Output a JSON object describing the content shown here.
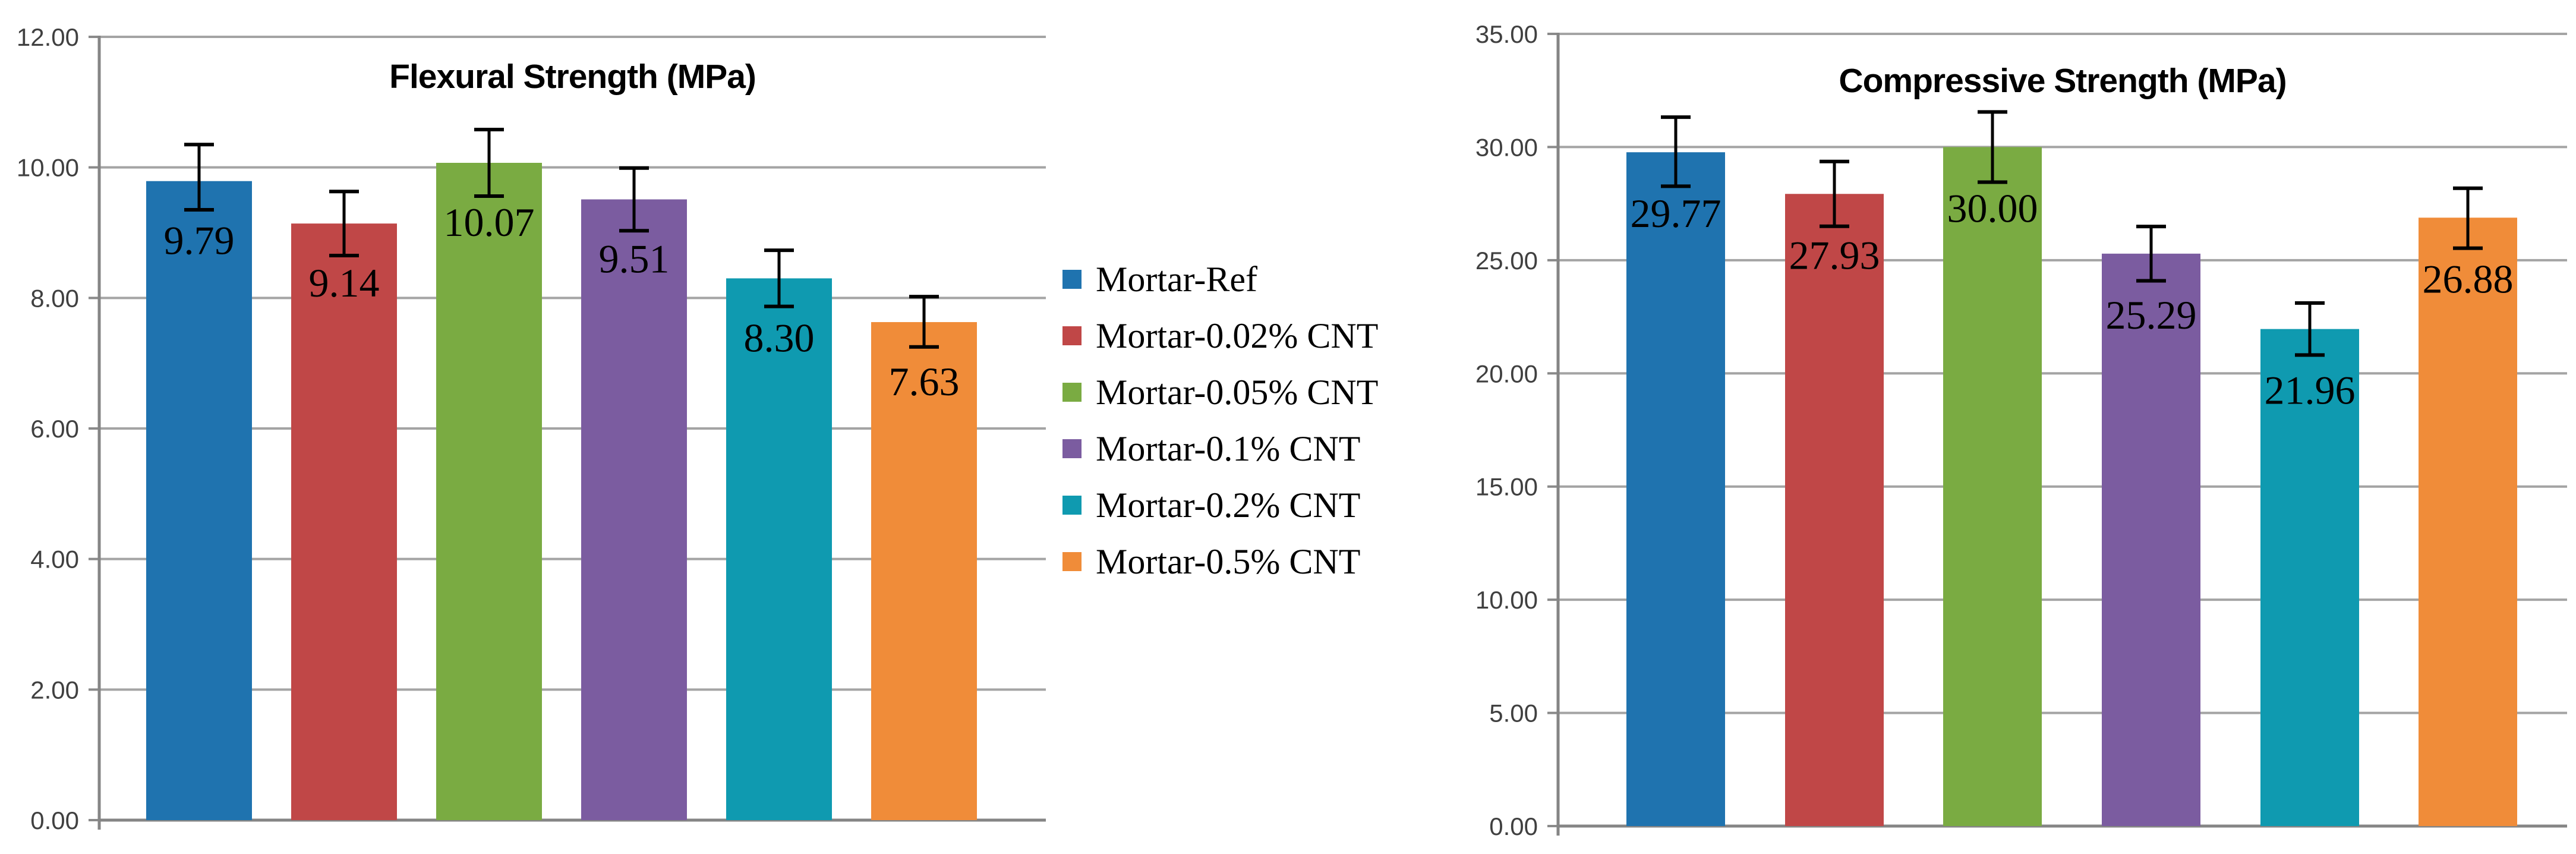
{
  "chart_data": [
    {
      "type": "bar",
      "title": "Flexural Strength (MPa)",
      "categories": [
        "Mortar-Ref",
        "Mortar-0.02% CNT",
        "Mortar-0.05% CNT",
        "Mortar-0.1% CNT",
        "Mortar-0.2% CNT",
        "Mortar-0.5% CNT"
      ],
      "values": [
        9.79,
        9.14,
        10.07,
        9.51,
        8.3,
        7.63
      ],
      "value_labels": [
        "9.79",
        "9.14",
        "10.07",
        "9.51",
        "8.30",
        "7.63"
      ],
      "errors": [
        {
          "plus": 0.56,
          "minus": 0.44
        },
        {
          "plus": 0.49,
          "minus": 0.49
        },
        {
          "plus": 0.51,
          "minus": 0.51
        },
        {
          "plus": 0.48,
          "minus": 0.48
        },
        {
          "plus": 0.43,
          "minus": 0.43
        },
        {
          "plus": 0.39,
          "minus": 0.38
        }
      ],
      "xlabel": "",
      "ylabel": "",
      "ylim": [
        0,
        12
      ],
      "ytick_step": 2,
      "ytick_labels": [
        "0.00",
        "2.00",
        "4.00",
        "6.00",
        "8.00",
        "10.00",
        "12.00"
      ],
      "grid": true,
      "error_bars": true,
      "legend_position": "right-of-chart-shared"
    },
    {
      "type": "bar",
      "title": "Compressive Strength (MPa)",
      "categories": [
        "Mortar-Ref",
        "Mortar-0.02% CNT",
        "Mortar-0.05% CNT",
        "Mortar-0.1% CNT",
        "Mortar-0.2% CNT",
        "Mortar-0.5% CNT"
      ],
      "values": [
        29.77,
        27.93,
        30.0,
        25.29,
        21.96,
        26.88
      ],
      "value_labels": [
        "29.77",
        "27.93",
        "30.00",
        "25.29",
        "21.96",
        "26.88"
      ],
      "errors": [
        {
          "plus": 1.55,
          "minus": 1.5
        },
        {
          "plus": 1.43,
          "minus": 1.43
        },
        {
          "plus": 1.55,
          "minus": 1.55
        },
        {
          "plus": 1.2,
          "minus": 1.2
        },
        {
          "plus": 1.15,
          "minus": 1.15
        },
        {
          "plus": 1.3,
          "minus": 1.35
        }
      ],
      "xlabel": "",
      "ylabel": "",
      "ylim": [
        0,
        35
      ],
      "ytick_step": 5,
      "ytick_labels": [
        "0.00",
        "5.00",
        "10.00",
        "15.00",
        "20.00",
        "25.00",
        "30.00",
        "35.00"
      ],
      "grid": true,
      "error_bars": true,
      "legend_position": "right-of-chart-shared"
    }
  ],
  "legend": {
    "items": [
      {
        "label": "Mortar-Ref",
        "color": "#1f73af"
      },
      {
        "label": "Mortar-0.02% CNT",
        "color": "#c04747"
      },
      {
        "label": "Mortar-0.05% CNT",
        "color": "#7aab42"
      },
      {
        "label": "Mortar-0.1% CNT",
        "color": "#7b5ca0"
      },
      {
        "label": "Mortar-0.2% CNT",
        "color": "#0f9ab0"
      },
      {
        "label": "Mortar-0.5% CNT",
        "color": "#f08c39"
      }
    ]
  },
  "style_colors": {
    "gridline": "#a4a4a4",
    "axis": "#858585",
    "tick": "#8a8a8a",
    "error_bar": "#000000",
    "background": "#ffffff"
  }
}
